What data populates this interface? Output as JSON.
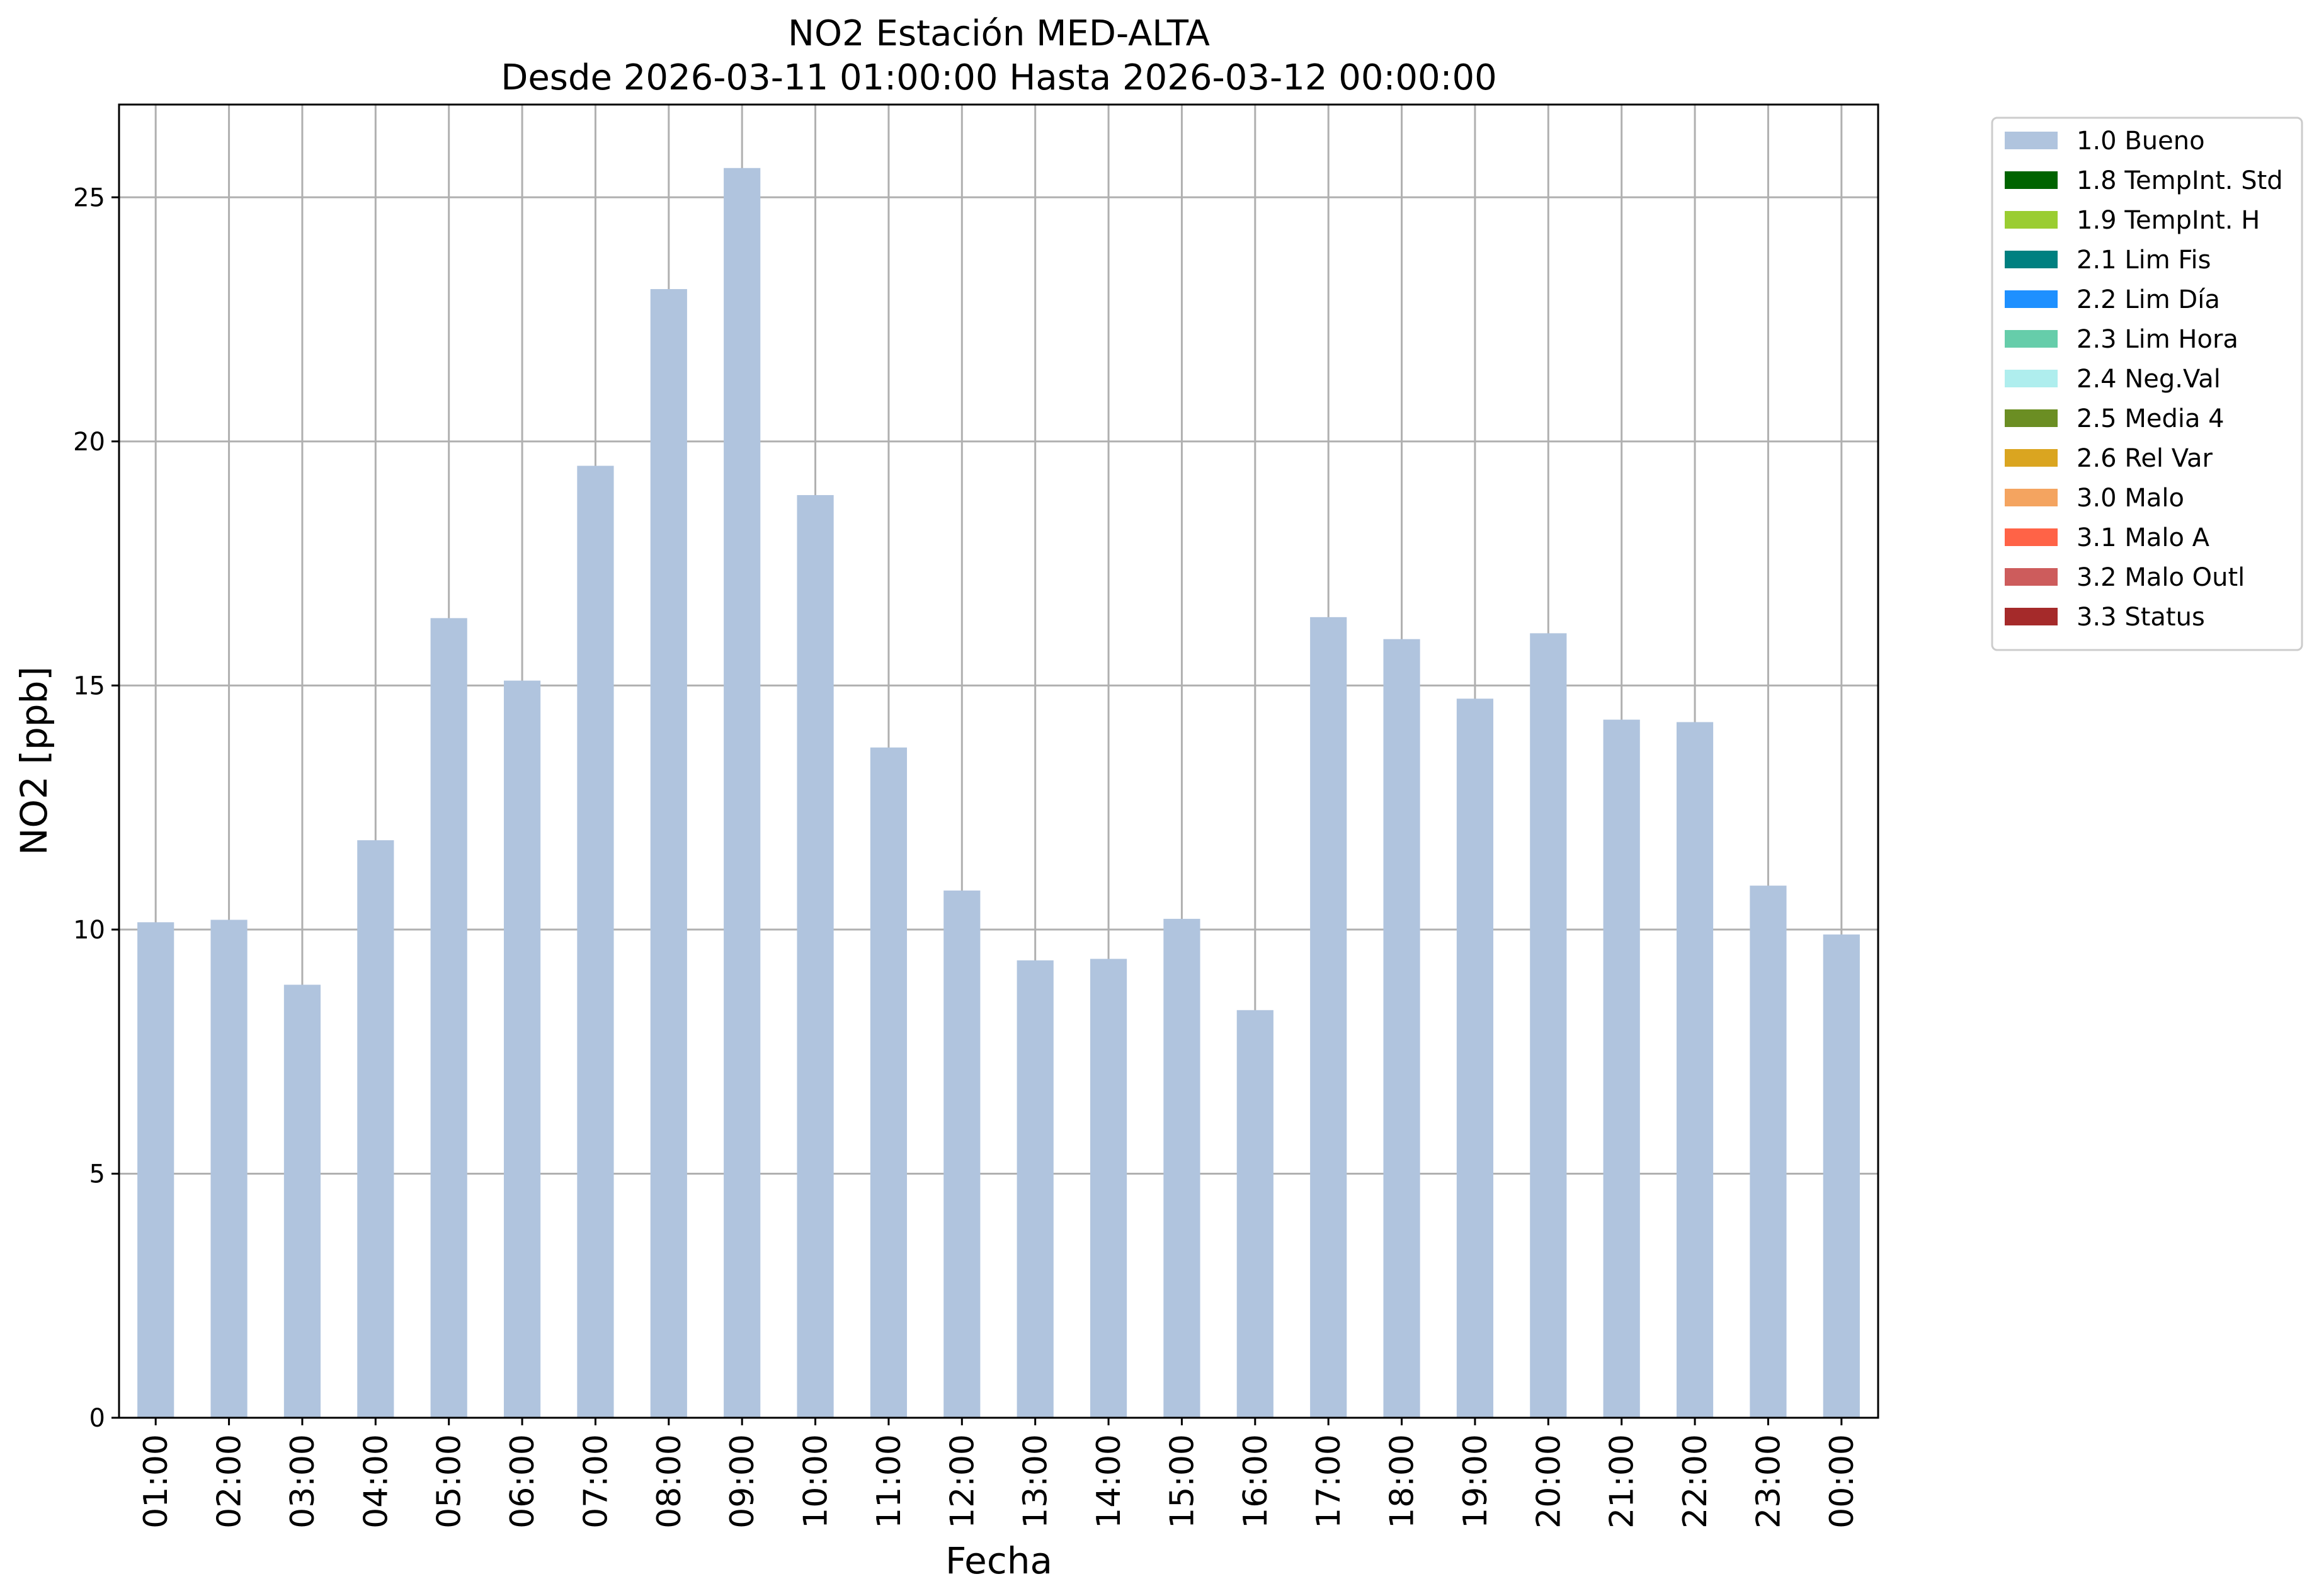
{
  "chart_data": {
    "type": "bar",
    "title": "NO2 Estación MED-ALTA",
    "subtitle": "Desde 2026-03-11 01:00:00 Hasta 2026-03-12 00:00:00",
    "xlabel": "Fecha",
    "ylabel": "NO2 [ppb]",
    "ylim": [
      0,
      26.9
    ],
    "yticks": [
      0,
      5,
      10,
      15,
      20,
      25
    ],
    "grid": true,
    "legend_position": "outside-top-right",
    "categories": [
      "01:00",
      "02:00",
      "03:00",
      "04:00",
      "05:00",
      "06:00",
      "07:00",
      "08:00",
      "09:00",
      "10:00",
      "11:00",
      "12:00",
      "13:00",
      "14:00",
      "15:00",
      "16:00",
      "17:00",
      "18:00",
      "19:00",
      "20:00",
      "21:00",
      "22:00",
      "23:00",
      "00:00"
    ],
    "series": [
      {
        "name": "1.0 Bueno",
        "color": "#b0c4de",
        "values": [
          10.15,
          10.2,
          8.87,
          11.83,
          16.38,
          15.1,
          19.5,
          23.12,
          25.6,
          18.9,
          13.73,
          10.8,
          9.37,
          9.4,
          10.22,
          8.35,
          16.4,
          15.95,
          14.73,
          16.07,
          14.3,
          14.25,
          10.9,
          9.9
        ]
      }
    ],
    "legend": [
      {
        "label": "1.0 Bueno",
        "color": "#b0c4de"
      },
      {
        "label": "1.8 TempInt. Std",
        "color": "#006400"
      },
      {
        "label": "1.9 TempInt. H",
        "color": "#9acd32"
      },
      {
        "label": "2.1 Lim Fis",
        "color": "#008080"
      },
      {
        "label": "2.2 Lim Día",
        "color": "#1e90ff"
      },
      {
        "label": "2.3 Lim Hora",
        "color": "#66cdaa"
      },
      {
        "label": "2.4 Neg.Val",
        "color": "#afeeee"
      },
      {
        "label": "2.5 Media 4",
        "color": "#6b8e23"
      },
      {
        "label": "2.6 Rel Var",
        "color": "#daa520"
      },
      {
        "label": "3.0 Malo",
        "color": "#f4a460"
      },
      {
        "label": "3.1 Malo A",
        "color": "#ff6347"
      },
      {
        "label": "3.2 Malo Outl",
        "color": "#cd5c5c"
      },
      {
        "label": "3.3 Status",
        "color": "#a52a2a"
      }
    ]
  }
}
